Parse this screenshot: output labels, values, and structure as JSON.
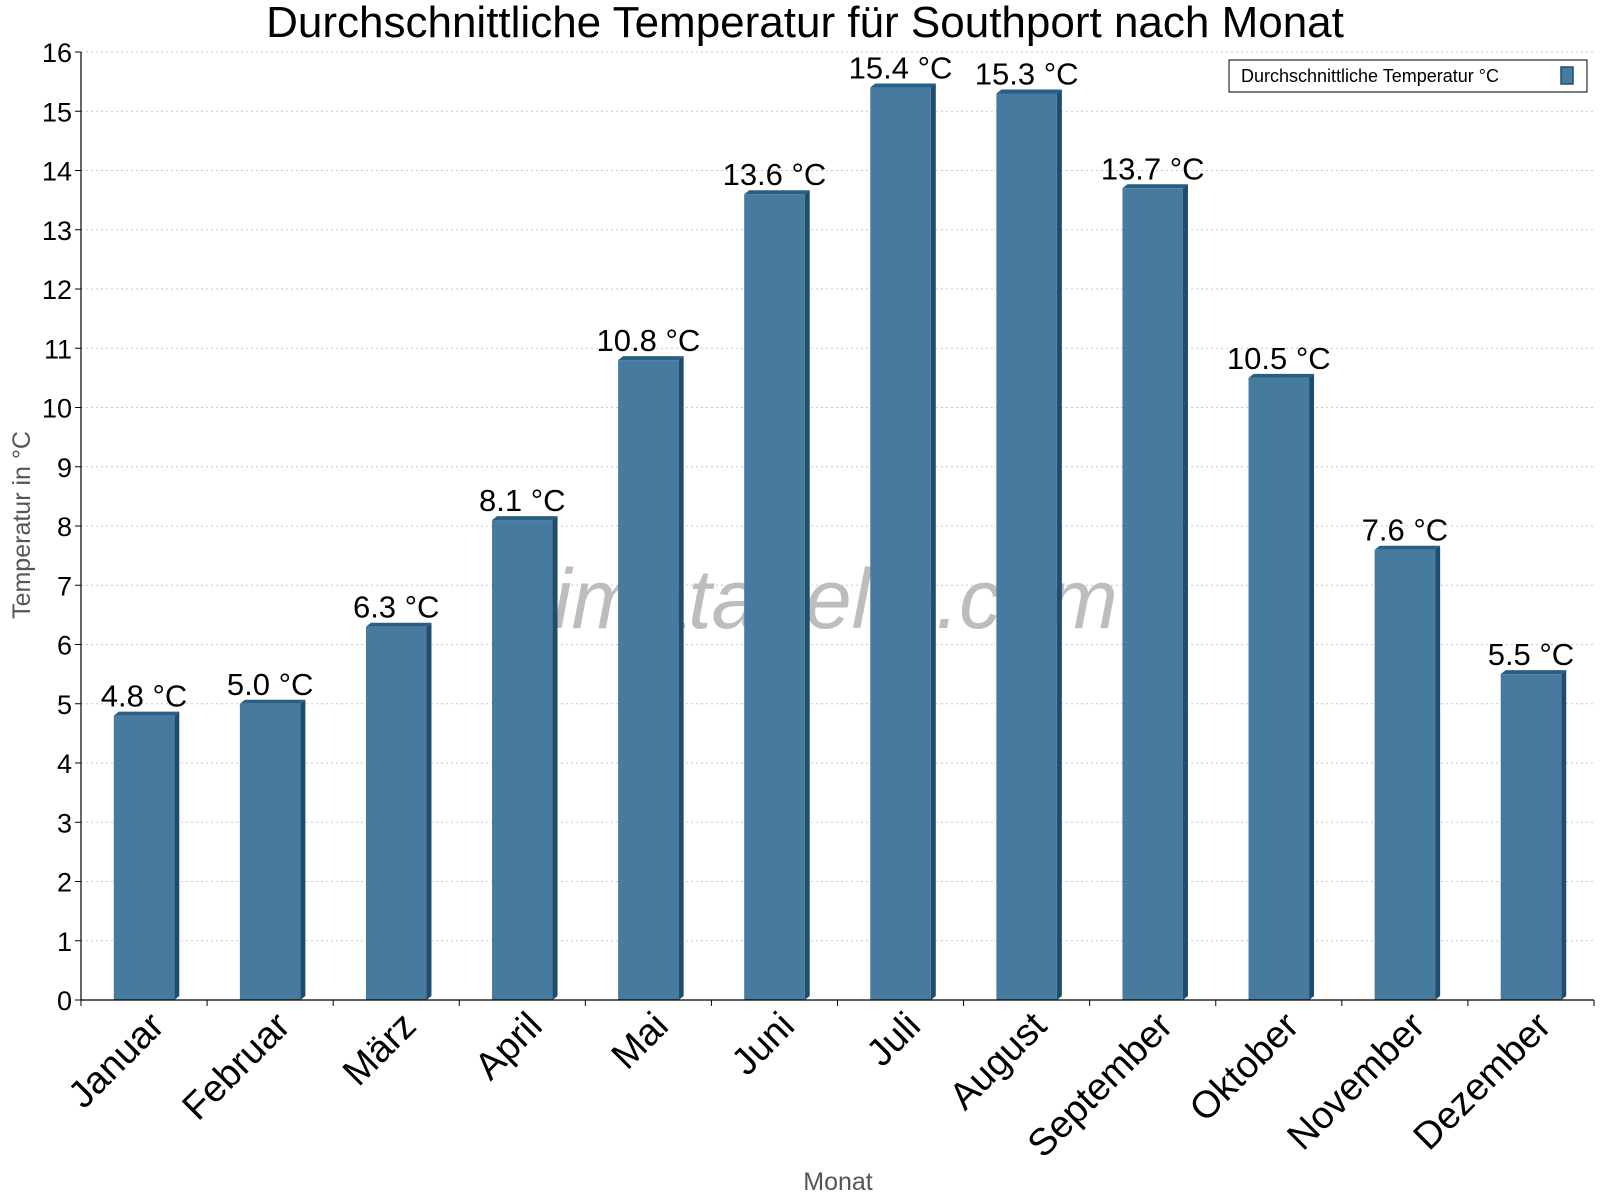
{
  "watermark": "klimatabelle.com",
  "chart_data": {
    "type": "bar",
    "title": "Durchschnittliche Temperatur für Southport nach Monat",
    "xlabel": "Monat",
    "ylabel": "Temperatur in °C",
    "ylim": [
      0,
      16
    ],
    "yticks": [
      "0",
      "1",
      "2",
      "3",
      "4",
      "5",
      "6",
      "7",
      "8",
      "9",
      "10",
      "11",
      "12",
      "13",
      "14",
      "15",
      "16"
    ],
    "grid": "horizontal-dotted",
    "legend": {
      "position": "top-right",
      "entry": "Durchschnittliche Temperatur °C"
    },
    "categories": [
      "Januar",
      "Februar",
      "März",
      "April",
      "Mai",
      "Juni",
      "Juli",
      "August",
      "September",
      "Oktober",
      "November",
      "Dezember"
    ],
    "series": [
      {
        "name": "Durchschnittliche Temperatur °C",
        "values": [
          4.8,
          5.0,
          6.3,
          8.1,
          10.8,
          13.6,
          15.4,
          15.3,
          13.7,
          10.5,
          7.6,
          5.5
        ],
        "labels": [
          "4.8 °C",
          "5.0 °C",
          "6.3 °C",
          "8.1 °C",
          "10.8 °C",
          "13.6 °C",
          "15.4 °C",
          "15.3 °C",
          "13.7 °C",
          "10.5 °C",
          "7.6 °C",
          "5.5 °C"
        ]
      }
    ],
    "colors": {
      "bar": "#467a9e",
      "bar_side": "#1f4d6e",
      "bar_top": "#2a5f84"
    }
  }
}
